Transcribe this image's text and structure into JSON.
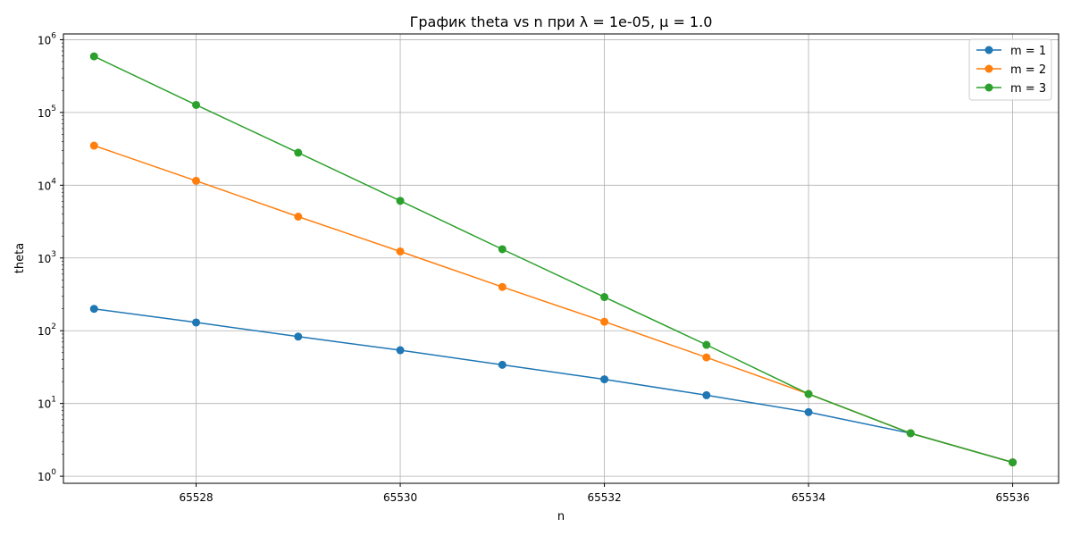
{
  "chart_data": {
    "type": "line",
    "title": "График theta vs n при λ = 1e-05, μ = 1.0",
    "xlabel": "n",
    "ylabel": "theta",
    "y_scale": "log",
    "xlim": [
      65526.7,
      65536.45
    ],
    "ylim": [
      0.8,
      1200000
    ],
    "x_ticks": [
      65528,
      65530,
      65532,
      65534,
      65536
    ],
    "y_ticks": [
      {
        "value": 1,
        "base": "10",
        "exp": "0"
      },
      {
        "value": 10,
        "base": "10",
        "exp": "1"
      },
      {
        "value": 100,
        "base": "10",
        "exp": "2"
      },
      {
        "value": 1000,
        "base": "10",
        "exp": "3"
      },
      {
        "value": 10000,
        "base": "10",
        "exp": "4"
      },
      {
        "value": 100000,
        "base": "10",
        "exp": "5"
      },
      {
        "value": 1000000,
        "base": "10",
        "exp": "6"
      }
    ],
    "grid": true,
    "legend_position": "top-right",
    "x": [
      65527,
      65528,
      65529,
      65530,
      65531,
      65532,
      65533,
      65534,
      65535,
      65536
    ],
    "series": [
      {
        "name": "m = 1",
        "color": "#1f77b4",
        "marker": "circle",
        "values": [
          200,
          130,
          83,
          54,
          34,
          21.5,
          13,
          7.6,
          3.9,
          1.55
        ]
      },
      {
        "name": "m = 2",
        "color": "#ff7f0e",
        "marker": "circle",
        "values": [
          35000,
          11500,
          3700,
          1230,
          400,
          133,
          43,
          13.5,
          3.9,
          1.55
        ]
      },
      {
        "name": "m = 3",
        "color": "#2ca02c",
        "marker": "circle",
        "values": [
          590000,
          127000,
          28000,
          6100,
          1320,
          290,
          64,
          13.5,
          3.9,
          1.55
        ]
      }
    ]
  }
}
